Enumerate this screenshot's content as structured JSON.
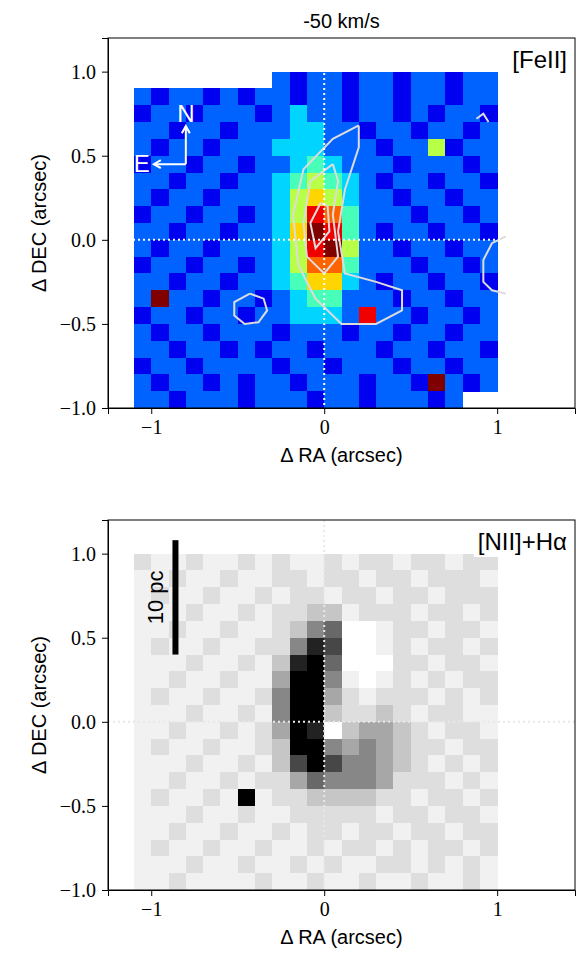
{
  "chart_data": [
    {
      "type": "heatmap",
      "title": "-50 km/s",
      "label": "[FeII]",
      "xlabel": "Δ RA (arcsec)",
      "ylabel": "Δ DEC (arcsec)",
      "xlim": [
        -1.25,
        1.45
      ],
      "ylim": [
        -1.0,
        1.2
      ],
      "xticks": [
        {
          "value": -1,
          "label": "−1"
        },
        0,
        1
      ],
      "yticks": [
        {
          "value": -1.0,
          "label": "−1.0"
        },
        {
          "value": -0.5,
          "label": "−0.5"
        },
        {
          "value": 0.0,
          "label": "0.0"
        },
        0.5,
        {
          "value": 1.0,
          "label": "1.0"
        }
      ],
      "color": "jet",
      "zlim": [
        0,
        9
      ],
      "vlines": [
        0
      ],
      "hlines": [
        0
      ],
      "compass": {
        "north": "N",
        "east": "E"
      },
      "x": [
        -1.05,
        -0.95,
        -0.85,
        -0.75,
        -0.65,
        -0.55,
        -0.45,
        -0.35,
        -0.25,
        -0.15,
        -0.05,
        0.05,
        0.15,
        0.25,
        0.35,
        0.45,
        0.55,
        0.65,
        0.75,
        0.85,
        0.95
      ],
      "y": [
        0.95,
        0.85,
        0.75,
        0.65,
        0.55,
        0.45,
        0.35,
        0.25,
        0.15,
        0.05,
        -0.05,
        -0.15,
        -0.25,
        -0.35,
        -0.45,
        -0.55,
        -0.65,
        -0.75,
        -0.85,
        -0.95
      ],
      "z": [
        [
          null,
          null,
          null,
          null,
          null,
          null,
          null,
          null,
          2,
          1,
          2,
          2,
          1,
          2,
          2,
          1,
          2,
          2,
          1,
          2,
          2
        ],
        [
          2,
          1,
          2,
          2,
          1,
          2,
          1,
          2,
          2,
          1,
          2,
          2,
          1,
          2,
          2,
          1,
          2,
          2,
          1,
          2,
          2
        ],
        [
          1,
          2,
          2,
          1,
          2,
          2,
          2,
          1,
          2,
          3,
          2,
          2,
          1,
          2,
          2,
          1,
          2,
          1,
          2,
          2,
          1
        ],
        [
          2,
          2,
          1,
          2,
          2,
          1,
          2,
          2,
          2,
          3,
          3,
          2,
          2,
          1,
          2,
          2,
          1,
          2,
          2,
          1,
          2
        ],
        [
          2,
          1,
          2,
          2,
          1,
          2,
          2,
          2,
          3,
          3,
          3,
          2,
          2,
          2,
          1,
          2,
          2,
          5,
          1,
          2,
          2
        ],
        [
          1,
          2,
          2,
          1,
          2,
          2,
          1,
          2,
          2,
          3,
          4,
          3,
          2,
          2,
          2,
          1,
          2,
          2,
          2,
          1,
          2
        ],
        [
          2,
          2,
          1,
          2,
          2,
          1,
          2,
          2,
          3,
          4,
          5,
          4,
          3,
          2,
          1,
          2,
          2,
          1,
          2,
          2,
          1
        ],
        [
          2,
          1,
          2,
          2,
          1,
          2,
          2,
          2,
          3,
          5,
          6,
          5,
          3,
          2,
          2,
          1,
          2,
          2,
          1,
          2,
          2
        ],
        [
          1,
          2,
          2,
          1,
          2,
          2,
          1,
          2,
          3,
          5,
          8,
          7,
          4,
          2,
          2,
          2,
          1,
          2,
          2,
          1,
          2
        ],
        [
          2,
          2,
          1,
          2,
          2,
          1,
          2,
          2,
          3,
          6,
          9,
          8,
          4,
          2,
          1,
          2,
          2,
          1,
          2,
          2,
          1
        ],
        [
          2,
          1,
          2,
          2,
          1,
          2,
          2,
          2,
          3,
          5,
          8,
          9,
          5,
          2,
          2,
          1,
          2,
          2,
          1,
          2,
          2
        ],
        [
          1,
          2,
          2,
          1,
          2,
          2,
          1,
          2,
          3,
          5,
          7,
          7,
          4,
          2,
          2,
          2,
          1,
          2,
          2,
          1,
          2
        ],
        [
          2,
          2,
          1,
          2,
          2,
          1,
          2,
          2,
          3,
          4,
          6,
          6,
          3,
          2,
          1,
          2,
          2,
          1,
          2,
          2,
          1
        ],
        [
          2,
          9,
          2,
          2,
          1,
          2,
          2,
          1,
          2,
          3,
          4,
          4,
          2,
          2,
          2,
          1,
          2,
          2,
          1,
          2,
          2
        ],
        [
          1,
          2,
          2,
          1,
          2,
          2,
          1,
          2,
          2,
          3,
          3,
          3,
          2,
          8,
          2,
          2,
          1,
          2,
          2,
          1,
          2
        ],
        [
          2,
          1,
          2,
          2,
          1,
          2,
          2,
          2,
          1,
          2,
          2,
          2,
          1,
          2,
          2,
          1,
          2,
          2,
          1,
          2,
          2
        ],
        [
          2,
          2,
          1,
          2,
          2,
          1,
          2,
          1,
          2,
          2,
          1,
          2,
          2,
          2,
          1,
          2,
          2,
          1,
          2,
          2,
          1
        ],
        [
          1,
          2,
          2,
          1,
          2,
          2,
          2,
          2,
          1,
          2,
          2,
          1,
          2,
          2,
          2,
          1,
          2,
          2,
          1,
          2,
          2
        ],
        [
          2,
          1,
          2,
          2,
          1,
          2,
          1,
          2,
          2,
          1,
          2,
          2,
          2,
          1,
          2,
          2,
          1,
          9,
          2,
          1,
          2
        ],
        [
          2,
          2,
          1,
          2,
          2,
          2,
          1,
          2,
          2,
          2,
          1,
          2,
          2,
          1,
          2,
          2,
          2,
          1,
          2,
          null,
          null
        ]
      ],
      "contours": [
        {
          "x": [
            0.2,
            0.05,
            -0.12,
            -0.18,
            -0.15,
            -0.05,
            0.1,
            0.3,
            0.45,
            0.45,
            0.3,
            0.12,
            0.08,
            0.12,
            0.2,
            0.2
          ],
          "y": [
            0.68,
            0.6,
            0.42,
            0.15,
            -0.15,
            -0.35,
            -0.5,
            -0.5,
            -0.42,
            -0.3,
            -0.25,
            -0.2,
            0.05,
            0.3,
            0.55,
            0.68
          ]
        },
        {
          "x": [
            0.05,
            -0.08,
            -0.12,
            -0.1,
            0.0,
            0.08,
            0.05,
            0.08,
            0.05
          ],
          "y": [
            0.45,
            0.35,
            0.1,
            -0.1,
            -0.2,
            -0.1,
            0.15,
            0.35,
            0.45
          ]
        },
        {
          "x": [
            -0.02,
            -0.08,
            -0.05,
            0.03,
            0.02,
            -0.02
          ],
          "y": [
            0.22,
            0.1,
            -0.05,
            0.05,
            0.2,
            0.22
          ]
        },
        {
          "x": [
            -0.43,
            -0.35,
            -0.33,
            -0.38,
            -0.46,
            -0.52,
            -0.52,
            -0.43
          ],
          "y": [
            -0.32,
            -0.35,
            -0.42,
            -0.49,
            -0.5,
            -0.45,
            -0.37,
            -0.32
          ]
        },
        {
          "x": [
            1.05,
            0.97,
            0.92,
            0.92,
            0.97,
            1.05
          ],
          "y": [
            0.02,
            -0.02,
            -0.12,
            -0.25,
            -0.3,
            -0.32
          ]
        },
        {
          "x": [
            0.88,
            0.92,
            0.95
          ],
          "y": [
            0.72,
            0.75,
            0.7
          ]
        }
      ]
    },
    {
      "type": "heatmap",
      "label": "[NII]+Hα",
      "xlabel": "Δ RA (arcsec)",
      "ylabel": "Δ DEC (arcsec)",
      "xlim": [
        -1.25,
        1.45
      ],
      "ylim": [
        -1.0,
        1.2
      ],
      "xticks": [
        {
          "value": -1,
          "label": "−1"
        },
        0,
        1
      ],
      "yticks": [
        {
          "value": -1.0,
          "label": "−1.0"
        },
        {
          "value": -0.5,
          "label": "−0.5"
        },
        {
          "value": 0.0,
          "label": "0.0"
        },
        0.5,
        {
          "value": 1.0,
          "label": "1.0"
        }
      ],
      "color": "gray_r",
      "zlim": [
        0,
        9
      ],
      "vlines": [
        0
      ],
      "hlines": [
        0
      ],
      "scale_bar": "10 pc",
      "x": [
        -1.05,
        -0.95,
        -0.85,
        -0.75,
        -0.65,
        -0.55,
        -0.45,
        -0.35,
        -0.25,
        -0.15,
        -0.05,
        0.05,
        0.15,
        0.25,
        0.35,
        0.45,
        0.55,
        0.65,
        0.75,
        0.85,
        0.95
      ],
      "y": [
        0.95,
        0.85,
        0.75,
        0.65,
        0.55,
        0.45,
        0.35,
        0.25,
        0.15,
        0.05,
        -0.05,
        -0.15,
        -0.25,
        -0.35,
        -0.45,
        -0.55,
        -0.65,
        -0.75,
        -0.85,
        -0.95
      ],
      "z": [
        [
          2,
          1,
          1,
          2,
          1,
          1,
          2,
          1,
          2,
          1,
          1,
          2,
          1,
          2,
          2,
          1,
          2,
          2,
          1,
          2,
          2
        ],
        [
          1,
          1,
          2,
          1,
          1,
          2,
          1,
          1,
          2,
          2,
          1,
          2,
          2,
          1,
          2,
          2,
          1,
          2,
          2,
          2,
          1
        ],
        [
          1,
          2,
          1,
          1,
          2,
          1,
          1,
          2,
          1,
          2,
          2,
          1,
          2,
          2,
          1,
          2,
          2,
          1,
          2,
          2,
          2
        ],
        [
          1,
          1,
          1,
          2,
          1,
          1,
          2,
          1,
          2,
          2,
          3,
          3,
          1,
          2,
          2,
          2,
          1,
          2,
          2,
          1,
          2
        ],
        [
          1,
          1,
          2,
          1,
          1,
          2,
          1,
          1,
          2,
          3,
          5,
          6,
          0,
          0,
          1,
          2,
          2,
          1,
          2,
          2,
          1
        ],
        [
          1,
          2,
          1,
          1,
          2,
          1,
          1,
          2,
          2,
          5,
          8,
          7,
          0,
          0,
          1,
          2,
          1,
          2,
          2,
          1,
          2
        ],
        [
          1,
          1,
          1,
          2,
          1,
          1,
          2,
          1,
          3,
          8,
          9,
          6,
          0,
          0,
          0,
          2,
          2,
          1,
          2,
          2,
          1
        ],
        [
          1,
          1,
          2,
          1,
          1,
          2,
          1,
          1,
          4,
          9,
          9,
          5,
          1,
          0,
          1,
          2,
          1,
          2,
          1,
          2,
          2
        ],
        [
          1,
          2,
          1,
          1,
          2,
          1,
          1,
          2,
          5,
          9,
          9,
          4,
          2,
          1,
          2,
          2,
          2,
          1,
          2,
          1,
          2
        ],
        [
          1,
          1,
          1,
          2,
          1,
          1,
          2,
          1,
          5,
          9,
          9,
          3,
          2,
          2,
          3,
          2,
          1,
          2,
          2,
          1,
          1
        ],
        [
          1,
          1,
          2,
          1,
          1,
          2,
          1,
          2,
          4,
          9,
          8,
          0,
          3,
          4,
          4,
          3,
          2,
          1,
          2,
          2,
          1
        ],
        [
          1,
          2,
          1,
          1,
          2,
          1,
          1,
          2,
          3,
          9,
          9,
          5,
          4,
          5,
          4,
          3,
          2,
          2,
          1,
          2,
          2
        ],
        [
          1,
          1,
          1,
          2,
          1,
          1,
          2,
          1,
          3,
          7,
          9,
          7,
          5,
          5,
          4,
          3,
          2,
          1,
          2,
          1,
          2
        ],
        [
          1,
          1,
          2,
          1,
          1,
          2,
          1,
          2,
          2,
          4,
          6,
          5,
          5,
          5,
          4,
          2,
          2,
          2,
          1,
          2,
          1
        ],
        [
          1,
          2,
          1,
          1,
          2,
          1,
          9,
          1,
          2,
          2,
          3,
          3,
          3,
          3,
          2,
          2,
          1,
          2,
          2,
          1,
          2
        ],
        [
          1,
          1,
          1,
          2,
          1,
          1,
          2,
          1,
          1,
          2,
          2,
          2,
          2,
          2,
          1,
          2,
          2,
          1,
          2,
          2,
          1
        ],
        [
          1,
          1,
          2,
          1,
          1,
          2,
          1,
          1,
          2,
          1,
          2,
          2,
          1,
          2,
          2,
          1,
          2,
          2,
          1,
          2,
          2
        ],
        [
          1,
          2,
          1,
          1,
          2,
          1,
          1,
          2,
          1,
          1,
          2,
          1,
          2,
          2,
          1,
          2,
          1,
          2,
          2,
          1,
          2
        ],
        [
          1,
          1,
          1,
          2,
          1,
          1,
          2,
          1,
          1,
          2,
          1,
          2,
          1,
          1,
          2,
          2,
          1,
          2,
          1,
          2,
          1
        ],
        [
          1,
          1,
          2,
          1,
          1,
          1,
          1,
          2,
          1,
          1,
          2,
          1,
          1,
          2,
          1,
          1,
          2,
          1,
          1,
          2,
          1
        ]
      ]
    }
  ]
}
